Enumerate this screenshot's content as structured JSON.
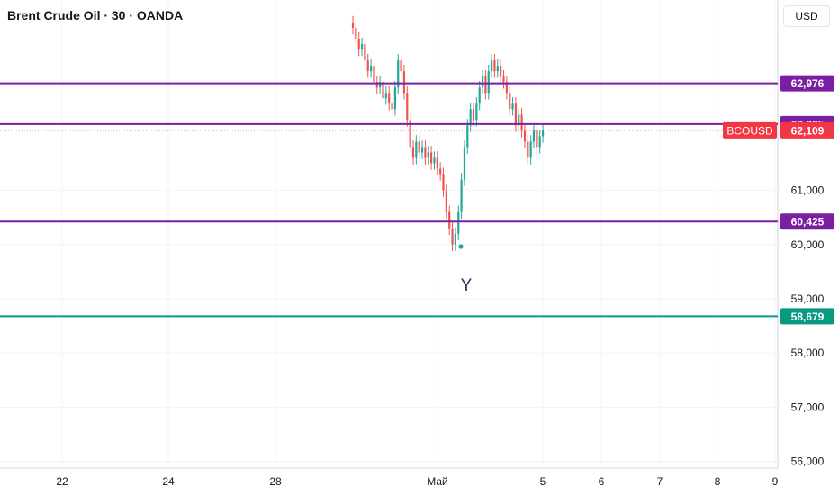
{
  "header": {
    "title": "Brent Crude Oil · 30 · OANDA",
    "currency": "USD"
  },
  "colors": {
    "level": "#7b1fa2",
    "support": "#089981",
    "price_tag": "#f23645",
    "up": "#26a69a",
    "down": "#ef5350",
    "grid": "#f0f3fa"
  },
  "icons": [
    "marker-dot-icon"
  ],
  "chart_data": {
    "type": "candlestick",
    "symbol": "BCOUSD",
    "y_ticks": [
      "61,000",
      "60,000",
      "59,000",
      "58,000",
      "57,000",
      "56,000"
    ],
    "x_ticks": [
      "22",
      "24",
      "28",
      "Май",
      "5",
      "6",
      "7",
      "8",
      "9"
    ],
    "ylim": [
      55.9,
      63.5
    ],
    "horizontal_levels": [
      {
        "value": 62.976,
        "label": "62,976",
        "color": "#7b1fa2"
      },
      {
        "value": 62.225,
        "label": "62,225",
        "color": "#7b1fa2"
      },
      {
        "value": 60.425,
        "label": "60,425",
        "color": "#7b1fa2"
      },
      {
        "value": 58.679,
        "label": "58,679",
        "color": "#089981"
      }
    ],
    "last_price": {
      "symbol": "BCOUSD",
      "value": 62.109,
      "label": "62,109"
    },
    "annotations": [
      {
        "text": "Y"
      }
    ],
    "series_close": [
      64.0,
      63.8,
      63.6,
      63.7,
      63.4,
      63.2,
      63.3,
      63.0,
      62.9,
      63.0,
      62.7,
      62.8,
      62.6,
      62.5,
      62.9,
      63.4,
      63.2,
      62.8,
      62.3,
      61.8,
      61.6,
      61.9,
      61.7,
      61.8,
      61.6,
      61.7,
      61.5,
      61.6,
      61.4,
      61.3,
      61.0,
      60.6,
      60.3,
      60.0,
      60.2,
      60.6,
      61.2,
      61.8,
      62.2,
      62.5,
      62.3,
      62.6,
      62.9,
      63.1,
      62.8,
      63.2,
      63.4,
      63.2,
      63.3,
      63.1,
      63.0,
      62.8,
      62.5,
      62.6,
      62.2,
      62.4,
      62.1,
      61.9,
      61.6,
      61.9,
      62.1,
      61.8,
      62.0,
      62.1
    ]
  }
}
